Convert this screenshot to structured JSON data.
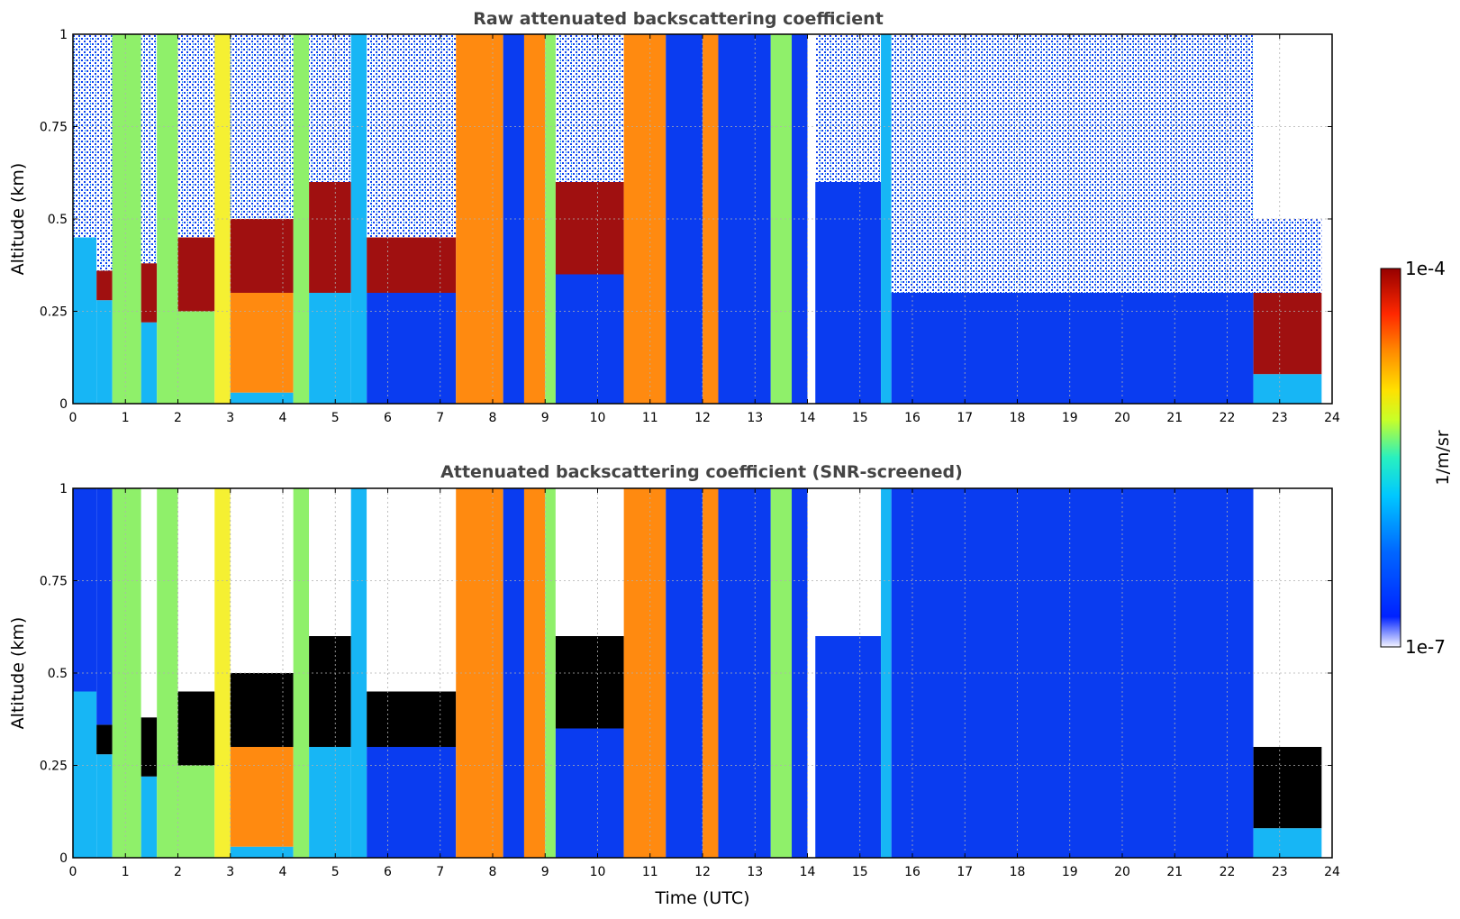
{
  "chart_data": [
    {
      "type": "heatmap",
      "title": "Raw attenuated backscattering coefficient",
      "xlabel": "",
      "ylabel": "Altitude (km)",
      "xlim": [
        0,
        24
      ],
      "ylim": [
        0,
        1
      ],
      "x_ticks": [
        "0",
        "1",
        "2",
        "3",
        "4",
        "5",
        "6",
        "7",
        "8",
        "9",
        "10",
        "11",
        "12",
        "13",
        "14",
        "15",
        "16",
        "17",
        "18",
        "19",
        "20",
        "21",
        "22",
        "23",
        "24"
      ],
      "y_ticks": [
        "0",
        "0.25",
        "0.5",
        "0.75",
        "1"
      ],
      "grid": true,
      "columns": [
        {
          "t0": 0.0,
          "t1": 0.45,
          "profile": [
            [
              0.0,
              0.45,
              "cyan"
            ],
            [
              0.45,
              1.0,
              "sparse"
            ]
          ]
        },
        {
          "t0": 0.45,
          "t1": 0.75,
          "profile": [
            [
              0.0,
              0.28,
              "cyan"
            ],
            [
              0.28,
              0.36,
              "dark-red"
            ],
            [
              0.36,
              1.0,
              "sparse"
            ]
          ]
        },
        {
          "t0": 0.75,
          "t1": 1.3,
          "profile": [
            [
              0.0,
              1.0,
              "green-yellow"
            ]
          ]
        },
        {
          "t0": 1.3,
          "t1": 1.6,
          "profile": [
            [
              0.0,
              0.22,
              "cyan"
            ],
            [
              0.22,
              0.38,
              "dark-red"
            ],
            [
              0.38,
              1.0,
              "sparse"
            ]
          ]
        },
        {
          "t0": 1.6,
          "t1": 2.0,
          "profile": [
            [
              0.0,
              1.0,
              "green-yellow"
            ]
          ]
        },
        {
          "t0": 2.0,
          "t1": 2.7,
          "profile": [
            [
              0.0,
              0.25,
              "green-yellow"
            ],
            [
              0.25,
              0.45,
              "dark-red"
            ],
            [
              0.45,
              1.0,
              "sparse"
            ]
          ]
        },
        {
          "t0": 2.7,
          "t1": 3.0,
          "profile": [
            [
              0.0,
              1.0,
              "yellow"
            ]
          ]
        },
        {
          "t0": 3.0,
          "t1": 4.2,
          "profile": [
            [
              0.0,
              0.03,
              "cyan"
            ],
            [
              0.03,
              0.3,
              "orange"
            ],
            [
              0.3,
              0.5,
              "dark-red"
            ],
            [
              0.5,
              1.0,
              "sparse"
            ]
          ]
        },
        {
          "t0": 4.2,
          "t1": 4.5,
          "profile": [
            [
              0.0,
              1.0,
              "green-yellow"
            ]
          ]
        },
        {
          "t0": 4.5,
          "t1": 5.3,
          "profile": [
            [
              0.0,
              0.3,
              "cyan"
            ],
            [
              0.3,
              0.6,
              "dark-red"
            ],
            [
              0.6,
              1.0,
              "sparse"
            ]
          ]
        },
        {
          "t0": 5.3,
          "t1": 5.6,
          "profile": [
            [
              0.0,
              1.0,
              "cyan"
            ]
          ]
        },
        {
          "t0": 5.6,
          "t1": 7.3,
          "profile": [
            [
              0.0,
              0.3,
              "blue"
            ],
            [
              0.3,
              0.45,
              "dark-red"
            ],
            [
              0.45,
              1.0,
              "sparse"
            ]
          ]
        },
        {
          "t0": 7.3,
          "t1": 8.2,
          "profile": [
            [
              0.0,
              1.0,
              "orange"
            ]
          ]
        },
        {
          "t0": 8.2,
          "t1": 8.6,
          "profile": [
            [
              0.0,
              1.0,
              "blue"
            ]
          ]
        },
        {
          "t0": 8.6,
          "t1": 9.0,
          "profile": [
            [
              0.0,
              1.0,
              "orange"
            ]
          ]
        },
        {
          "t0": 9.0,
          "t1": 9.2,
          "profile": [
            [
              0.0,
              1.0,
              "green-yellow"
            ]
          ]
        },
        {
          "t0": 9.2,
          "t1": 10.5,
          "profile": [
            [
              0.0,
              0.35,
              "blue"
            ],
            [
              0.35,
              0.6,
              "dark-red"
            ],
            [
              0.6,
              1.0,
              "sparse"
            ]
          ]
        },
        {
          "t0": 10.5,
          "t1": 11.3,
          "profile": [
            [
              0.0,
              1.0,
              "orange"
            ]
          ]
        },
        {
          "t0": 11.3,
          "t1": 12.0,
          "profile": [
            [
              0.0,
              1.0,
              "blue"
            ]
          ]
        },
        {
          "t0": 12.0,
          "t1": 12.3,
          "profile": [
            [
              0.0,
              1.0,
              "orange"
            ]
          ]
        },
        {
          "t0": 12.3,
          "t1": 13.3,
          "profile": [
            [
              0.0,
              1.0,
              "blue"
            ]
          ]
        },
        {
          "t0": 13.3,
          "t1": 13.7,
          "profile": [
            [
              0.0,
              1.0,
              "green-yellow"
            ]
          ]
        },
        {
          "t0": 13.7,
          "t1": 14.0,
          "profile": [
            [
              0.0,
              1.0,
              "blue"
            ]
          ]
        },
        {
          "t0": 14.0,
          "t1": 14.15,
          "profile": [
            [
              0.0,
              1.0,
              "white"
            ]
          ]
        },
        {
          "t0": 14.15,
          "t1": 15.4,
          "profile": [
            [
              0.0,
              0.6,
              "blue"
            ],
            [
              0.6,
              1.0,
              "sparse"
            ]
          ]
        },
        {
          "t0": 15.4,
          "t1": 15.6,
          "profile": [
            [
              0.0,
              1.0,
              "cyan"
            ]
          ]
        },
        {
          "t0": 15.6,
          "t1": 22.5,
          "profile": [
            [
              0.0,
              0.3,
              "blue"
            ],
            [
              0.3,
              1.0,
              "sparse"
            ]
          ]
        },
        {
          "t0": 22.5,
          "t1": 23.8,
          "profile": [
            [
              0.0,
              0.08,
              "cyan"
            ],
            [
              0.08,
              0.3,
              "dark-red"
            ],
            [
              0.3,
              0.5,
              "sparse"
            ],
            [
              0.5,
              1.0,
              "white"
            ]
          ]
        }
      ]
    },
    {
      "type": "heatmap",
      "title": "Attenuated backscattering coefficient (SNR-screened)",
      "xlabel": "Time (UTC)",
      "ylabel": "Altitude (km)",
      "xlim": [
        0,
        24
      ],
      "ylim": [
        0,
        1
      ],
      "x_ticks": [
        "0",
        "1",
        "2",
        "3",
        "4",
        "5",
        "6",
        "7",
        "8",
        "9",
        "10",
        "11",
        "12",
        "13",
        "14",
        "15",
        "16",
        "17",
        "18",
        "19",
        "20",
        "21",
        "22",
        "23",
        "24"
      ],
      "y_ticks": [
        "0",
        "0.25",
        "0.5",
        "0.75",
        "1"
      ],
      "grid": true,
      "columns": [
        {
          "t0": 0.0,
          "t1": 0.45,
          "profile": [
            [
              0.0,
              0.45,
              "cyan"
            ],
            [
              0.45,
              1.0,
              "blue"
            ]
          ]
        },
        {
          "t0": 0.45,
          "t1": 0.75,
          "profile": [
            [
              0.0,
              0.28,
              "cyan"
            ],
            [
              0.28,
              0.36,
              "black"
            ],
            [
              0.36,
              1.0,
              "blue"
            ]
          ]
        },
        {
          "t0": 0.75,
          "t1": 1.3,
          "profile": [
            [
              0.0,
              1.0,
              "green-yellow"
            ]
          ]
        },
        {
          "t0": 1.3,
          "t1": 1.6,
          "profile": [
            [
              0.0,
              0.22,
              "cyan"
            ],
            [
              0.22,
              0.38,
              "black"
            ],
            [
              0.38,
              1.0,
              "white"
            ]
          ]
        },
        {
          "t0": 1.6,
          "t1": 2.0,
          "profile": [
            [
              0.0,
              1.0,
              "green-yellow"
            ]
          ]
        },
        {
          "t0": 2.0,
          "t1": 2.7,
          "profile": [
            [
              0.0,
              0.25,
              "green-yellow"
            ],
            [
              0.25,
              0.45,
              "black"
            ],
            [
              0.45,
              1.0,
              "white"
            ]
          ]
        },
        {
          "t0": 2.7,
          "t1": 3.0,
          "profile": [
            [
              0.0,
              1.0,
              "yellow"
            ]
          ]
        },
        {
          "t0": 3.0,
          "t1": 4.2,
          "profile": [
            [
              0.0,
              0.03,
              "cyan"
            ],
            [
              0.03,
              0.3,
              "orange"
            ],
            [
              0.3,
              0.5,
              "black"
            ],
            [
              0.5,
              1.0,
              "white"
            ]
          ]
        },
        {
          "t0": 4.2,
          "t1": 4.5,
          "profile": [
            [
              0.0,
              1.0,
              "green-yellow"
            ]
          ]
        },
        {
          "t0": 4.5,
          "t1": 5.3,
          "profile": [
            [
              0.0,
              0.3,
              "cyan"
            ],
            [
              0.3,
              0.6,
              "black"
            ],
            [
              0.6,
              1.0,
              "white"
            ]
          ]
        },
        {
          "t0": 5.3,
          "t1": 5.6,
          "profile": [
            [
              0.0,
              1.0,
              "cyan"
            ]
          ]
        },
        {
          "t0": 5.6,
          "t1": 7.3,
          "profile": [
            [
              0.0,
              0.3,
              "blue"
            ],
            [
              0.3,
              0.45,
              "black"
            ],
            [
              0.45,
              1.0,
              "white"
            ]
          ]
        },
        {
          "t0": 7.3,
          "t1": 8.2,
          "profile": [
            [
              0.0,
              1.0,
              "orange"
            ]
          ]
        },
        {
          "t0": 8.2,
          "t1": 8.6,
          "profile": [
            [
              0.0,
              1.0,
              "blue"
            ]
          ]
        },
        {
          "t0": 8.6,
          "t1": 9.0,
          "profile": [
            [
              0.0,
              1.0,
              "orange"
            ]
          ]
        },
        {
          "t0": 9.0,
          "t1": 9.2,
          "profile": [
            [
              0.0,
              1.0,
              "green-yellow"
            ]
          ]
        },
        {
          "t0": 9.2,
          "t1": 10.5,
          "profile": [
            [
              0.0,
              0.35,
              "blue"
            ],
            [
              0.35,
              0.6,
              "black"
            ],
            [
              0.6,
              1.0,
              "white"
            ]
          ]
        },
        {
          "t0": 10.5,
          "t1": 11.3,
          "profile": [
            [
              0.0,
              1.0,
              "orange"
            ]
          ]
        },
        {
          "t0": 11.3,
          "t1": 12.0,
          "profile": [
            [
              0.0,
              1.0,
              "blue"
            ]
          ]
        },
        {
          "t0": 12.0,
          "t1": 12.3,
          "profile": [
            [
              0.0,
              1.0,
              "orange"
            ]
          ]
        },
        {
          "t0": 12.3,
          "t1": 13.3,
          "profile": [
            [
              0.0,
              1.0,
              "blue"
            ]
          ]
        },
        {
          "t0": 13.3,
          "t1": 13.7,
          "profile": [
            [
              0.0,
              1.0,
              "green-yellow"
            ]
          ]
        },
        {
          "t0": 13.7,
          "t1": 14.0,
          "profile": [
            [
              0.0,
              1.0,
              "blue"
            ]
          ]
        },
        {
          "t0": 14.0,
          "t1": 14.15,
          "profile": [
            [
              0.0,
              1.0,
              "white"
            ]
          ]
        },
        {
          "t0": 14.15,
          "t1": 15.4,
          "profile": [
            [
              0.0,
              0.6,
              "blue"
            ],
            [
              0.6,
              1.0,
              "white"
            ]
          ]
        },
        {
          "t0": 15.4,
          "t1": 15.6,
          "profile": [
            [
              0.0,
              1.0,
              "cyan"
            ]
          ]
        },
        {
          "t0": 15.6,
          "t1": 22.5,
          "profile": [
            [
              0.0,
              0.3,
              "blue"
            ],
            [
              0.3,
              1.0,
              "blue"
            ]
          ]
        },
        {
          "t0": 22.5,
          "t1": 23.8,
          "profile": [
            [
              0.0,
              0.08,
              "cyan"
            ],
            [
              0.08,
              0.3,
              "black"
            ],
            [
              0.3,
              0.5,
              "white"
            ],
            [
              0.5,
              1.0,
              "white"
            ]
          ]
        }
      ]
    }
  ],
  "colorbar": {
    "max_label": "1e-4",
    "min_label": "1e-7",
    "unit_label": "1/m/sr",
    "stops": [
      "#f4f4ff",
      "#0022ff",
      "#0066ff",
      "#00c8ff",
      "#28f0c0",
      "#c8ff28",
      "#ffe000",
      "#ff8c00",
      "#ff2800",
      "#960000"
    ],
    "scale": "log"
  },
  "colors": {
    "white": "#ffffff",
    "sparse": "#ffffff",
    "blue": "#0a3cf0",
    "cyan": "#17b6f5",
    "green-yellow": "#8ff06a",
    "yellow": "#f5f032",
    "orange": "#ff8a10",
    "dark-red": "#a01010",
    "black": "#000000"
  }
}
